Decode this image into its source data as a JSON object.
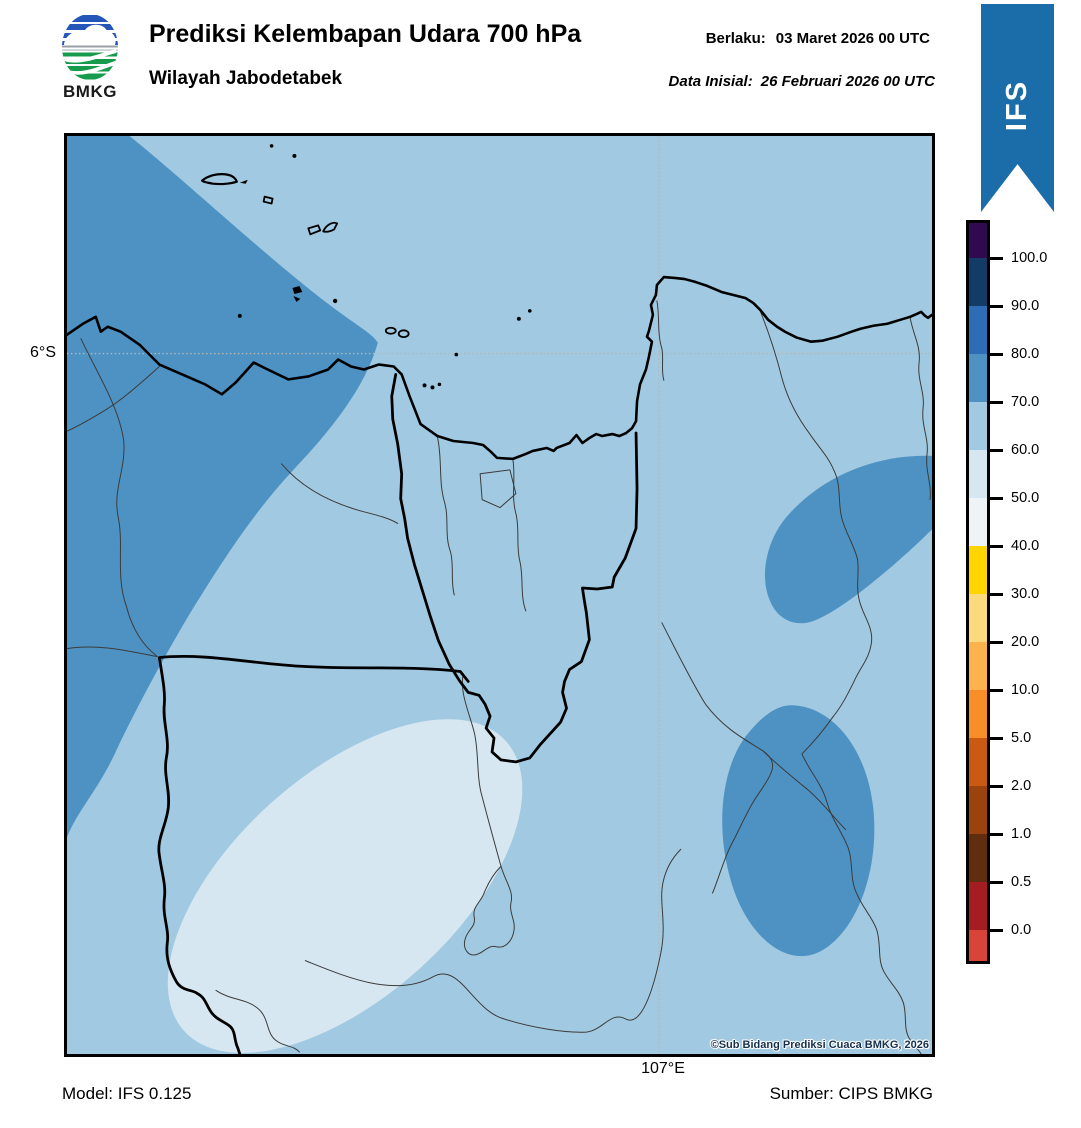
{
  "header": {
    "logo_text": "BMKG",
    "title": "Prediksi Kelembapan Udara 700 hPa",
    "subtitle": "Wilayah Jabodetabek",
    "valid": {
      "label": "Berlaku:",
      "value": "03 Maret 2026 00 UTC"
    },
    "initial": {
      "label": "Data Inisial:",
      "value": "26 Februari 2026 00 UTC"
    },
    "ribbon_label": "IFS"
  },
  "map": {
    "lat_label": "6°S",
    "lon_label": "107°E",
    "copyright": "©Sub Bidang Prediksi Cuaca BMKG, 2026",
    "colors": {
      "humidity_70_80": "#4e92c4",
      "humidity_60_70": "#a1c9e1",
      "humidity_50_60": "#d6e7f2",
      "coastline": "#000000",
      "admin_thick": "#000000",
      "admin_thin": "#3b3b3b",
      "gridline": "#b5b8b5"
    }
  },
  "colorbar": {
    "unit": "%",
    "tick_labels": [
      "100.0",
      "90.0",
      "80.0",
      "70.0",
      "60.0",
      "50.0",
      "40.0",
      "30.0",
      "20.0",
      "10.0",
      "5.0",
      "2.0",
      "1.0",
      "0.5",
      "0.0"
    ],
    "segment_colors": [
      "#30094e",
      "#143a66",
      "#2e6db4",
      "#4e92c4",
      "#a1c9e1",
      "#d6e7f2",
      "#f0f3f6",
      "#ffd500",
      "#fdd97e",
      "#fcb34d",
      "#f78e2a",
      "#ca5a13",
      "#9a430f",
      "#602d0e",
      "#a31d22",
      "#d8433a"
    ]
  },
  "footer": {
    "model": "Model: IFS 0.125",
    "source": "Sumber: CIPS BMKG"
  },
  "colors": {
    "ribbon_blue": "#1a6da8",
    "logo_blue": "#2356b8",
    "logo_green": "#169a4b",
    "logo_gray": "#9aa0a6"
  }
}
